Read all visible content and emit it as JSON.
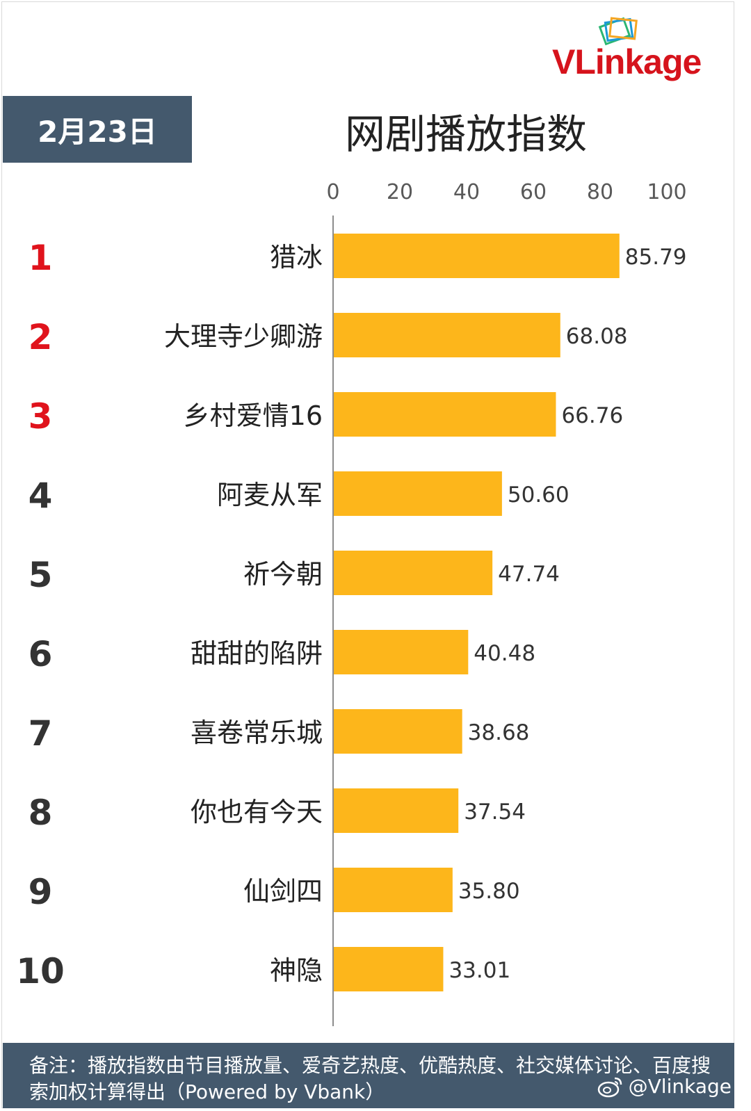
{
  "logo": {
    "text": "VLinkage"
  },
  "header": {
    "date": "2月23日",
    "title": "网剧播放指数"
  },
  "chart_data": {
    "type": "bar",
    "orientation": "horizontal",
    "title": "网剧播放指数",
    "xlim": [
      0,
      100
    ],
    "x_ticks": [
      "0",
      "20",
      "40",
      "60",
      "80",
      "100"
    ],
    "ranks": [
      "1",
      "2",
      "3",
      "4",
      "5",
      "6",
      "7",
      "8",
      "9",
      "10"
    ],
    "categories": [
      "猎冰",
      "大理寺少卿游",
      "乡村爱情16",
      "阿麦从军",
      "祈今朝",
      "甜甜的陷阱",
      "喜卷常乐城",
      "你也有今天",
      "仙剑四",
      "神隐"
    ],
    "values": [
      85.79,
      68.08,
      66.76,
      50.6,
      47.74,
      40.48,
      38.68,
      37.54,
      35.8,
      33.01
    ],
    "value_labels": [
      "85.79",
      "68.08",
      "66.76",
      "50.60",
      "47.74",
      "40.48",
      "38.68",
      "37.54",
      "35.80",
      "33.01"
    ],
    "grid": false,
    "bar_color": "#fdb61b",
    "top_rank_color": "#e0131c",
    "rank_color": "#333333"
  },
  "footer": {
    "note": "备注：播放指数由节目播放量、爱奇艺热度、优酷热度、社交媒体讨论、百度搜索加权计算得出（Powered by Vbank）",
    "watermark": "@Vlinkage"
  }
}
